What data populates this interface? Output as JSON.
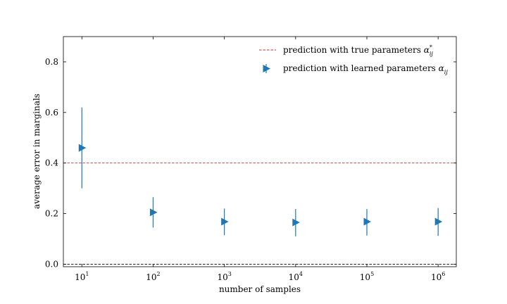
{
  "chart_data": {
    "type": "scatter",
    "xscale": "log",
    "xlim": [
      5.5,
      1800000
    ],
    "ylim": [
      -0.01,
      0.9
    ],
    "xlabel": "number of samples",
    "ylabel": "average error in marginals",
    "x_ticks": [
      {
        "value": 10,
        "base": "10",
        "exp": "1"
      },
      {
        "value": 100,
        "base": "10",
        "exp": "2"
      },
      {
        "value": 1000,
        "base": "10",
        "exp": "3"
      },
      {
        "value": 10000,
        "base": "10",
        "exp": "4"
      },
      {
        "value": 100000,
        "base": "10",
        "exp": "5"
      },
      {
        "value": 1000000,
        "base": "10",
        "exp": "6"
      }
    ],
    "y_ticks": [
      {
        "value": 0.0,
        "label": "0.0"
      },
      {
        "value": 0.2,
        "label": "0.2"
      },
      {
        "value": 0.4,
        "label": "0.4"
      },
      {
        "value": 0.6,
        "label": "0.6"
      },
      {
        "value": 0.8,
        "label": "0.8"
      }
    ],
    "series": [
      {
        "name": "prediction with learned parameters α_ij",
        "label_text": "prediction with learned parameters ",
        "label_math": "α",
        "label_sub": "ij",
        "marker": "triangle-right",
        "color": "#1f77b4",
        "x": [
          10,
          100,
          1000,
          10000,
          100000,
          1000000
        ],
        "y": [
          0.46,
          0.205,
          0.168,
          0.165,
          0.168,
          0.168
        ],
        "yerr_low": [
          0.3,
          0.145,
          0.115,
          0.11,
          0.113,
          0.112
        ],
        "yerr_high": [
          0.62,
          0.265,
          0.22,
          0.218,
          0.218,
          0.222
        ]
      }
    ],
    "reference_lines": [
      {
        "name": "prediction with true parameters α*_ij",
        "label_text": "prediction with true parameters ",
        "label_math": "α",
        "label_sup": "*",
        "label_sub": "ij",
        "y": 0.4,
        "color": "#d62728",
        "style": "dashed",
        "in_legend": true
      },
      {
        "y": 0.0,
        "color": "#000000",
        "style": "dashed",
        "in_legend": false
      }
    ],
    "legend": {
      "placement": "top-right"
    },
    "grid": false
  }
}
